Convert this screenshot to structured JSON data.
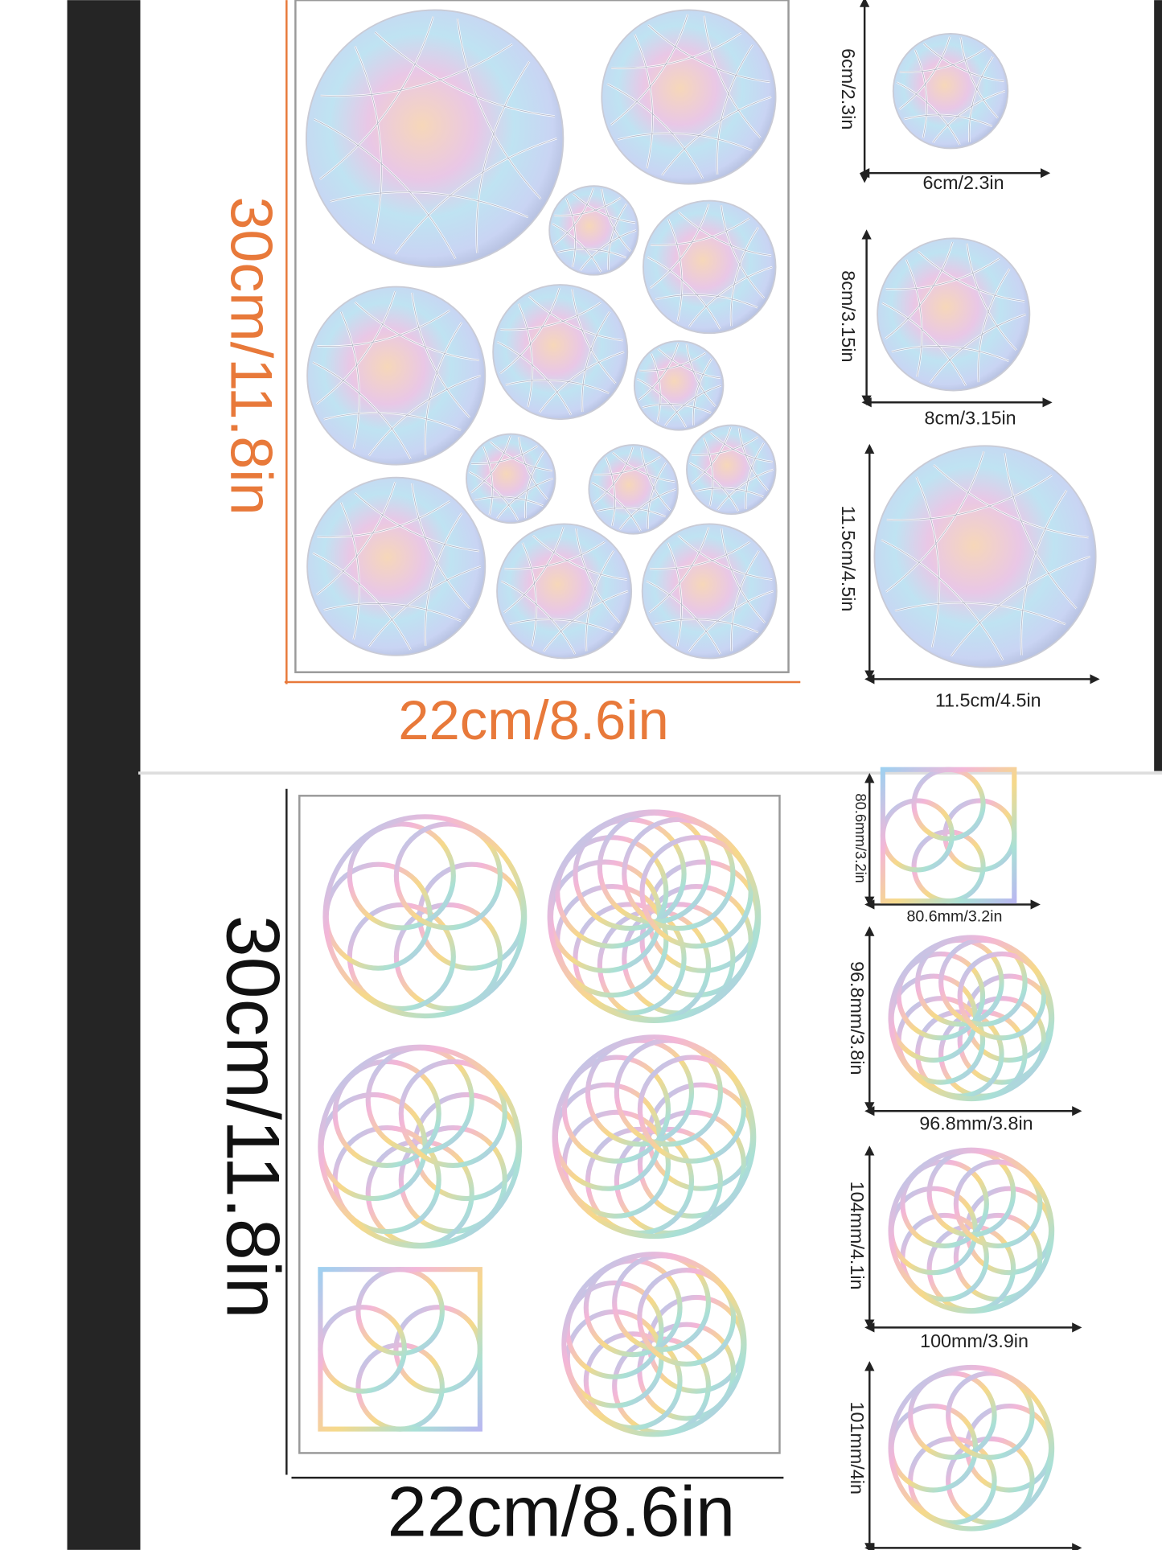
{
  "top_panel": {
    "sheet_height": "30cm/11.8in",
    "sheet_width": "22cm/8.6in",
    "sizes": [
      {
        "height": "6cm/2.3in",
        "width": "6cm/2.3in"
      },
      {
        "height": "8cm/3.15in",
        "width": "8cm/3.15in"
      },
      {
        "height": "11.5cm/4.5in",
        "width": "11.5cm/4.5in"
      }
    ]
  },
  "bottom_panel": {
    "sheet_height": "30cm/11.8in",
    "sheet_width": "22cm/8.6in",
    "sizes": [
      {
        "height": "80.6mm/3.2in",
        "width": "80.6mm/3.2in"
      },
      {
        "height": "96.8mm/3.8in",
        "width": "96.8mm/3.8in"
      },
      {
        "height": "104mm/4.1in",
        "width": "100mm/3.9in"
      },
      {
        "height": "101mm/4in"
      }
    ]
  }
}
